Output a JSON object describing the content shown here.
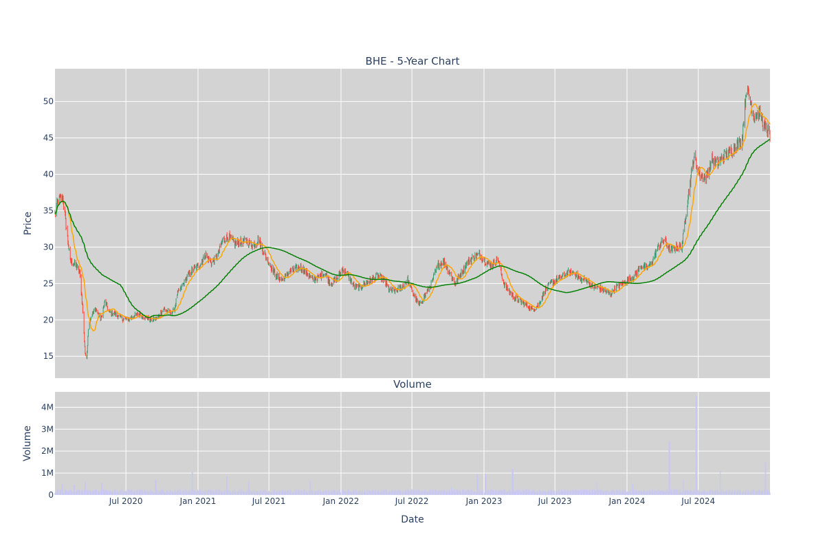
{
  "chart_data": [
    {
      "type": "candlestick",
      "title": "BHE - 5-Year Chart",
      "ylabel": "Price",
      "ylim": [
        12,
        54.5
      ],
      "xlim": [
        "2020-01-02",
        "2024-12-31"
      ],
      "yticks": [
        15,
        20,
        25,
        30,
        35,
        40,
        45,
        50
      ],
      "plot_background": "#d3d3d3",
      "grid": true,
      "price_path": {
        "dates": [
          "2020-01-02",
          "2020-01-10",
          "2020-01-22",
          "2020-02-10",
          "2020-02-24",
          "2020-03-05",
          "2020-03-12",
          "2020-03-16",
          "2020-03-19",
          "2020-03-23",
          "2020-03-27",
          "2020-04-03",
          "2020-04-15",
          "2020-04-28",
          "2020-05-08",
          "2020-05-20",
          "2020-06-05",
          "2020-06-20",
          "2020-07-05",
          "2020-07-20",
          "2020-08-05",
          "2020-08-20",
          "2020-09-05",
          "2020-09-20",
          "2020-10-05",
          "2020-10-20",
          "2020-11-01",
          "2020-11-09",
          "2020-11-20",
          "2020-12-05",
          "2020-12-20",
          "2021-01-05",
          "2021-01-20",
          "2021-02-05",
          "2021-02-20",
          "2021-03-05",
          "2021-03-20",
          "2021-04-05",
          "2021-04-20",
          "2021-05-05",
          "2021-05-20",
          "2021-06-05",
          "2021-06-20",
          "2021-07-05",
          "2021-07-20",
          "2021-08-05",
          "2021-08-20",
          "2021-09-05",
          "2021-09-20",
          "2021-10-05",
          "2021-10-20",
          "2021-11-05",
          "2021-11-20",
          "2021-12-05",
          "2021-12-20",
          "2022-01-05",
          "2022-01-20",
          "2022-02-05",
          "2022-02-20",
          "2022-03-05",
          "2022-03-20",
          "2022-04-05",
          "2022-04-20",
          "2022-05-05",
          "2022-05-20",
          "2022-06-05",
          "2022-06-20",
          "2022-07-05",
          "2022-07-20",
          "2022-08-05",
          "2022-08-20",
          "2022-09-05",
          "2022-09-20",
          "2022-10-05",
          "2022-10-20",
          "2022-11-05",
          "2022-11-20",
          "2022-12-05",
          "2022-12-20",
          "2023-01-05",
          "2023-01-20",
          "2023-02-05",
          "2023-02-20",
          "2023-03-05",
          "2023-03-20",
          "2023-04-05",
          "2023-04-20",
          "2023-05-05",
          "2023-05-20",
          "2023-06-05",
          "2023-06-20",
          "2023-07-05",
          "2023-07-20",
          "2023-08-05",
          "2023-08-20",
          "2023-09-05",
          "2023-09-20",
          "2023-10-05",
          "2023-10-20",
          "2023-11-05",
          "2023-11-20",
          "2023-12-05",
          "2023-12-20",
          "2024-01-05",
          "2024-01-20",
          "2024-02-05",
          "2024-02-20",
          "2024-03-05",
          "2024-03-20",
          "2024-04-05",
          "2024-04-20",
          "2024-05-05",
          "2024-05-20",
          "2024-06-05",
          "2024-06-20",
          "2024-07-05",
          "2024-07-20",
          "2024-08-05",
          "2024-08-20",
          "2024-09-05",
          "2024-09-20",
          "2024-10-05",
          "2024-10-20",
          "2024-11-01",
          "2024-11-20",
          "2024-12-05",
          "2024-12-20",
          "2024-12-31"
        ],
        "prices": [
          34.5,
          36.5,
          36.8,
          28.0,
          27.5,
          26.5,
          22.0,
          18.0,
          15.5,
          14.5,
          19.0,
          20.5,
          21.5,
          20.0,
          22.5,
          21.0,
          20.8,
          20.2,
          20.0,
          20.5,
          20.8,
          20.3,
          20.0,
          20.3,
          21.5,
          21.0,
          21.2,
          23.5,
          24.5,
          26.0,
          27.0,
          27.5,
          29.0,
          27.8,
          28.8,
          31.0,
          31.5,
          30.5,
          30.7,
          30.8,
          30.2,
          31.0,
          29.0,
          27.5,
          26.0,
          25.5,
          26.5,
          27.0,
          27.2,
          26.5,
          25.5,
          25.8,
          26.5,
          25.0,
          25.5,
          27.0,
          26.0,
          24.5,
          24.5,
          25.0,
          25.5,
          26.0,
          25.5,
          24.0,
          24.0,
          24.5,
          25.5,
          23.5,
          22.0,
          23.5,
          25.0,
          27.5,
          28.0,
          26.5,
          25.0,
          26.5,
          28.0,
          28.5,
          29.0,
          28.0,
          27.5,
          28.5,
          25.0,
          24.0,
          23.0,
          22.5,
          22.0,
          21.5,
          22.0,
          24.0,
          25.0,
          25.5,
          26.0,
          26.5,
          26.5,
          25.5,
          25.5,
          24.5,
          24.5,
          24.0,
          23.5,
          24.5,
          25.0,
          25.5,
          26.0,
          27.5,
          27.0,
          28.0,
          30.0,
          31.0,
          29.5,
          30.0,
          30.0,
          37.0,
          42.5,
          40.0,
          39.5,
          42.0,
          41.5,
          42.5,
          43.0,
          44.0,
          44.5,
          52.0,
          48.0,
          48.5,
          46.0,
          45.5
        ]
      },
      "series": [
        {
          "name": "",
          "color": "#ffa500",
          "kind": "short-moving-average"
        },
        {
          "name": "",
          "color": "#008000",
          "kind": "long-moving-average"
        }
      ],
      "candle_colors": {
        "up": "#3d9970",
        "down": "#ff4136"
      }
    },
    {
      "type": "bar",
      "title": "Volume",
      "xlabel": "Date",
      "ylabel": "Volume",
      "ylim": [
        0,
        4700000
      ],
      "yticks": [
        0,
        1000000,
        2000000,
        3000000,
        4000000
      ],
      "ytick_labels": [
        "0",
        "1M",
        "2M",
        "3M",
        "4M"
      ],
      "xticks": [
        "2020-07-01",
        "2021-01-01",
        "2021-07-01",
        "2022-01-01",
        "2022-07-01",
        "2023-01-01",
        "2023-07-01",
        "2024-01-01",
        "2024-07-01"
      ],
      "xtick_labels": [
        "Jul 2020",
        "Jan 2021",
        "Jul 2021",
        "Jan 2022",
        "Jul 2022",
        "Jan 2023",
        "Jul 2023",
        "Jan 2024",
        "Jul 2024"
      ],
      "bar_color": "#c8c8f0",
      "base_volume": 200000,
      "volume_spikes": [
        {
          "date": "2020-01-20",
          "value": 500000
        },
        {
          "date": "2020-02-20",
          "value": 450000
        },
        {
          "date": "2020-03-20",
          "value": 600000
        },
        {
          "date": "2020-05-01",
          "value": 550000
        },
        {
          "date": "2020-09-15",
          "value": 700000
        },
        {
          "date": "2020-12-18",
          "value": 1050000
        },
        {
          "date": "2021-03-15",
          "value": 850000
        },
        {
          "date": "2021-05-10",
          "value": 600000
        },
        {
          "date": "2021-10-15",
          "value": 650000
        },
        {
          "date": "2022-10-10",
          "value": 350000
        },
        {
          "date": "2022-12-15",
          "value": 950000
        },
        {
          "date": "2023-01-05",
          "value": 980000
        },
        {
          "date": "2023-03-15",
          "value": 1200000
        },
        {
          "date": "2023-10-15",
          "value": 600000
        },
        {
          "date": "2024-01-15",
          "value": 500000
        },
        {
          "date": "2024-04-18",
          "value": 2450000
        },
        {
          "date": "2024-05-25",
          "value": 700000
        },
        {
          "date": "2024-06-26",
          "value": 4500000
        },
        {
          "date": "2024-08-25",
          "value": 1100000
        },
        {
          "date": "2024-12-20",
          "value": 1500000
        }
      ]
    }
  ]
}
